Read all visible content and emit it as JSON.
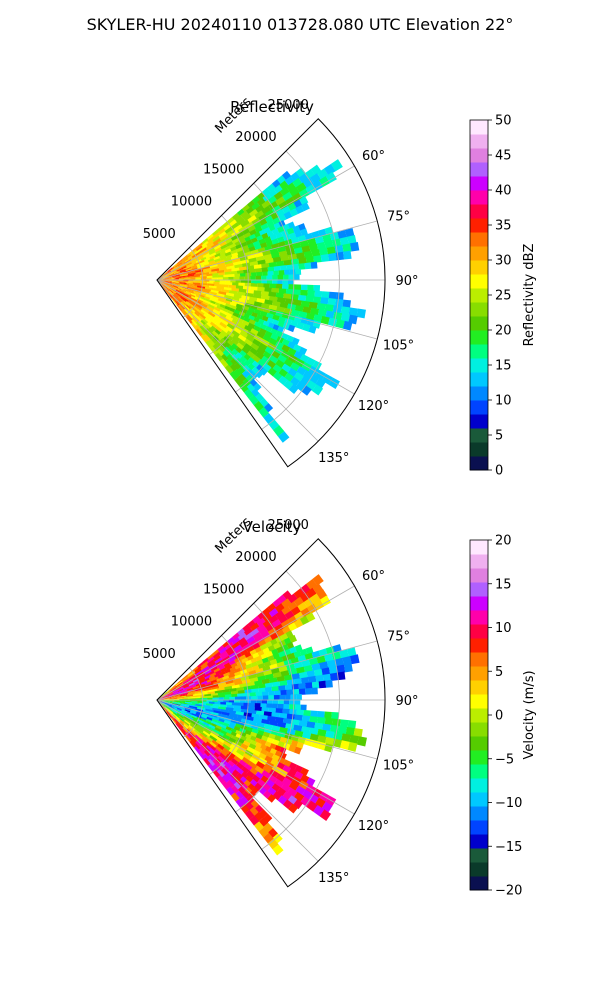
{
  "title": "SKYLER-HU  20240110  013728.080 UTC Elevation 22°",
  "chart_data": [
    {
      "type": "heatmap",
      "title": "Reflectivity",
      "radial_label": "Meters",
      "radial_ticks": [
        "5000",
        "10000",
        "15000",
        "20000",
        "25000"
      ],
      "radial_values": [
        5000,
        10000,
        15000,
        20000,
        25000
      ],
      "rlim": [
        0,
        25000
      ],
      "azimuth_range_deg": [
        45,
        145
      ],
      "azimuth_ticks": [
        "60°",
        "75°",
        "90°",
        "105°",
        "120°",
        "135°"
      ],
      "azimuth_values": [
        60,
        75,
        90,
        105,
        120,
        135
      ],
      "grid": true,
      "colorbar": {
        "label": "Reflectivity dBZ",
        "ticks": [
          "0",
          "5",
          "10",
          "15",
          "20",
          "25",
          "30",
          "35",
          "40",
          "45",
          "50"
        ],
        "range": [
          0,
          50
        ],
        "colors": [
          "#0a1050",
          "#0a3a2a",
          "#1a5a3a",
          "#0000cc",
          "#0044ff",
          "#0088ff",
          "#00c8ff",
          "#00f0e0",
          "#00ff80",
          "#22ee22",
          "#55cc00",
          "#88dd00",
          "#bbee00",
          "#ffff00",
          "#ffd000",
          "#ffa000",
          "#ff7000",
          "#ff2000",
          "#ff0044",
          "#ff00aa",
          "#cc00ff",
          "#b060ff",
          "#e080e0",
          "#f0b0f0",
          "#ffe8ff"
        ]
      }
    },
    {
      "type": "heatmap",
      "title": "Velocity",
      "radial_label": "Meters",
      "radial_ticks": [
        "5000",
        "10000",
        "15000",
        "20000",
        "25000"
      ],
      "radial_values": [
        5000,
        10000,
        15000,
        20000,
        25000
      ],
      "rlim": [
        0,
        25000
      ],
      "azimuth_range_deg": [
        45,
        145
      ],
      "azimuth_ticks": [
        "60°",
        "75°",
        "90°",
        "105°",
        "120°",
        "135°"
      ],
      "azimuth_values": [
        60,
        75,
        90,
        105,
        120,
        135
      ],
      "grid": true,
      "colorbar": {
        "label": "Velocity (m/s)",
        "ticks": [
          "−20",
          "−15",
          "−10",
          "−5",
          "0",
          "5",
          "10",
          "15",
          "20"
        ],
        "range": [
          -20,
          20
        ],
        "colors": [
          "#0a1050",
          "#0a3a2a",
          "#1a5a3a",
          "#0000cc",
          "#0044ff",
          "#0088ff",
          "#00c8ff",
          "#00f0e0",
          "#00ff80",
          "#22ee22",
          "#55cc00",
          "#88dd00",
          "#bbee00",
          "#ffff00",
          "#ffd000",
          "#ffa000",
          "#ff7000",
          "#ff2000",
          "#ff0044",
          "#ff00aa",
          "#cc00ff",
          "#b060ff",
          "#e080e0",
          "#f0b0f0",
          "#ffe8ff"
        ]
      }
    }
  ]
}
